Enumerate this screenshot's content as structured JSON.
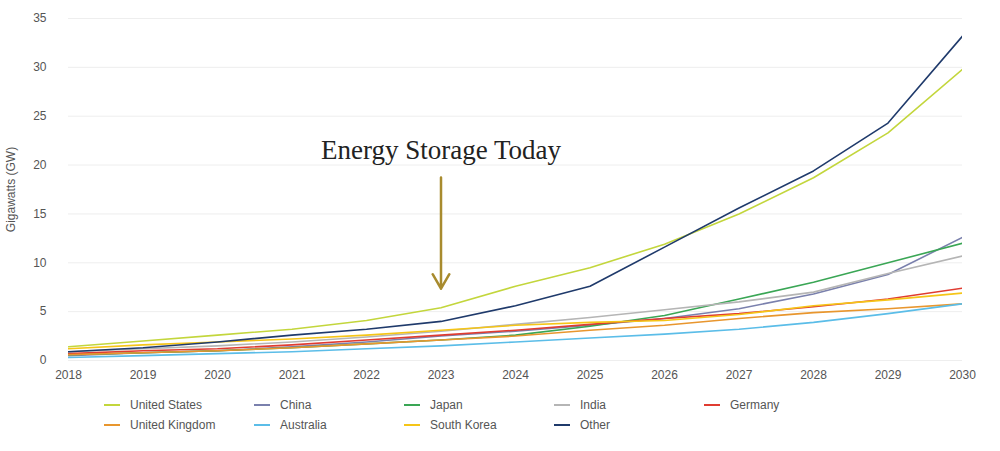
{
  "chart_data": {
    "type": "line",
    "y_label": "Gigawatts (GW)",
    "x": [
      2018,
      2019,
      2020,
      2021,
      2022,
      2023,
      2024,
      2025,
      2026,
      2027,
      2028,
      2029,
      2030
    ],
    "xlim": [
      2018,
      2030
    ],
    "xticks": [
      2018,
      2019,
      2020,
      2021,
      2022,
      2023,
      2024,
      2025,
      2026,
      2027,
      2028,
      2029,
      2030
    ],
    "ylim": [
      0,
      35
    ],
    "yticks": [
      0,
      5,
      10,
      15,
      20,
      25,
      30,
      35
    ],
    "grid": true,
    "legend": "bottom",
    "annotation": {
      "text": "Energy Storage Today",
      "x": 2023
    },
    "series": [
      {
        "name": "United States",
        "color": "#c3d63c",
        "values": [
          1.4,
          2.0,
          2.6,
          3.2,
          4.1,
          5.4,
          7.6,
          9.5,
          11.9,
          15.0,
          18.7,
          23.3,
          29.8
        ]
      },
      {
        "name": "China",
        "color": "#7a80ad",
        "values": [
          0.5,
          0.8,
          1.0,
          1.4,
          1.9,
          2.5,
          3.0,
          3.6,
          4.3,
          5.3,
          6.8,
          8.8,
          12.6
        ]
      },
      {
        "name": "Japan",
        "color": "#3aa655",
        "values": [
          0.6,
          0.8,
          1.0,
          1.3,
          1.7,
          2.1,
          2.6,
          3.5,
          4.6,
          6.3,
          8.0,
          10.0,
          12.0
        ]
      },
      {
        "name": "India",
        "color": "#b5b5b5",
        "values": [
          0.9,
          1.2,
          1.5,
          1.9,
          2.4,
          3.0,
          3.7,
          4.4,
          5.2,
          6.0,
          7.0,
          8.9,
          10.7
        ]
      },
      {
        "name": "Germany",
        "color": "#e03c31",
        "values": [
          0.7,
          1.0,
          1.2,
          1.6,
          2.1,
          2.6,
          3.1,
          3.7,
          4.3,
          4.8,
          5.5,
          6.3,
          7.4
        ]
      },
      {
        "name": "United Kingdom",
        "color": "#e8962e",
        "values": [
          0.6,
          0.8,
          1.0,
          1.3,
          1.7,
          2.1,
          2.5,
          3.1,
          3.6,
          4.3,
          4.9,
          5.3,
          5.8
        ]
      },
      {
        "name": "Australia",
        "color": "#5bbde8",
        "values": [
          0.3,
          0.5,
          0.7,
          0.9,
          1.2,
          1.5,
          1.9,
          2.3,
          2.7,
          3.2,
          3.9,
          4.8,
          5.8
        ]
      },
      {
        "name": "South Korea",
        "color": "#f5c518",
        "values": [
          1.2,
          1.6,
          1.9,
          2.2,
          2.6,
          3.1,
          3.6,
          3.9,
          4.1,
          4.7,
          5.6,
          6.2,
          6.9
        ]
      },
      {
        "name": "Other",
        "color": "#1f3a6b",
        "values": [
          0.9,
          1.3,
          1.9,
          2.6,
          3.2,
          4.0,
          5.6,
          7.6,
          11.6,
          15.6,
          19.4,
          24.3,
          33.2
        ]
      }
    ]
  }
}
